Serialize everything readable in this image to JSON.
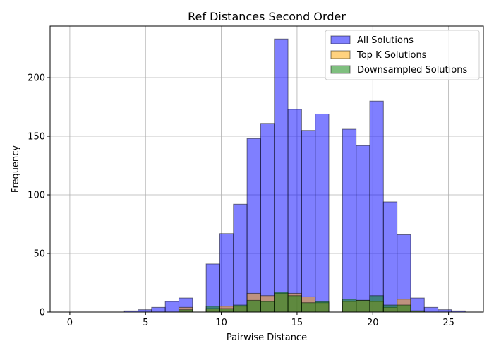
{
  "chart_data": {
    "type": "bar",
    "title": "Ref Distances Second Order",
    "xlabel": "Pairwise Distance",
    "ylabel": "Frequency",
    "xlim": [
      -1.3,
      27.3
    ],
    "ylim": [
      0,
      244
    ],
    "xticks": [
      0,
      5,
      10,
      15,
      20,
      25
    ],
    "yticks": [
      0,
      50,
      100,
      150,
      200
    ],
    "grid": true,
    "legend_position": "top-right",
    "bin_width": 0.9,
    "bin_starts": [
      3.6,
      4.5,
      5.4,
      6.3,
      7.2,
      9.0,
      9.9,
      10.8,
      11.7,
      12.6,
      13.5,
      14.4,
      15.3,
      16.2,
      18.0,
      18.9,
      19.8,
      20.7,
      21.6,
      22.5,
      23.4,
      24.3,
      25.2
    ],
    "series": [
      {
        "name": "All Solutions",
        "color": "#0000ff",
        "opacity": 0.5,
        "values": [
          1,
          2,
          4,
          9,
          12,
          41,
          67,
          92,
          148,
          161,
          233,
          173,
          155,
          169,
          156,
          142,
          180,
          94,
          66,
          12,
          4,
          2,
          1
        ]
      },
      {
        "name": "Top K Solutions",
        "color": "#ffa500",
        "opacity": 0.5,
        "values": [
          0,
          0,
          0,
          0,
          4,
          3,
          5,
          5,
          16,
          14,
          16,
          16,
          13,
          8,
          9,
          10,
          9,
          4,
          11,
          1,
          0,
          0,
          0
        ]
      },
      {
        "name": "Downsampled Solutions",
        "color": "#008000",
        "opacity": 0.5,
        "values": [
          0,
          0,
          0,
          0,
          2,
          5,
          3,
          6,
          10,
          9,
          17,
          14,
          8,
          9,
          11,
          10,
          14,
          6,
          6,
          1,
          0,
          0,
          0
        ]
      }
    ]
  }
}
